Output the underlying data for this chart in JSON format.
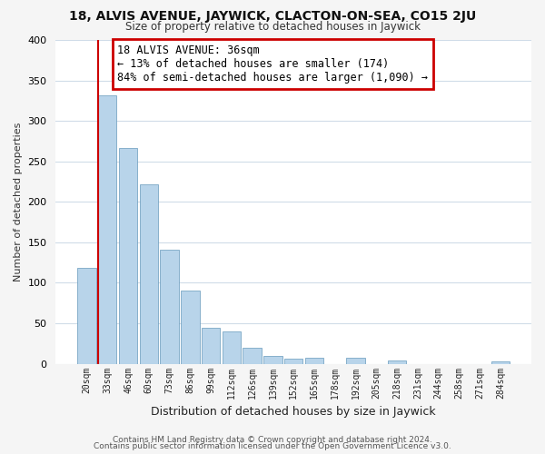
{
  "title": "18, ALVIS AVENUE, JAYWICK, CLACTON-ON-SEA, CO15 2JU",
  "subtitle": "Size of property relative to detached houses in Jaywick",
  "xlabel": "Distribution of detached houses by size in Jaywick",
  "ylabel": "Number of detached properties",
  "bar_labels": [
    "20sqm",
    "33sqm",
    "46sqm",
    "60sqm",
    "73sqm",
    "86sqm",
    "99sqm",
    "112sqm",
    "126sqm",
    "139sqm",
    "152sqm",
    "165sqm",
    "178sqm",
    "192sqm",
    "205sqm",
    "218sqm",
    "231sqm",
    "244sqm",
    "258sqm",
    "271sqm",
    "284sqm"
  ],
  "bar_values": [
    118,
    332,
    266,
    222,
    141,
    90,
    44,
    40,
    20,
    10,
    6,
    8,
    0,
    8,
    0,
    4,
    0,
    0,
    0,
    0,
    3
  ],
  "bar_color": "#b8d4ea",
  "bar_edge_color": "#6699bb",
  "highlight_bar_index": 1,
  "highlight_color": "#cc0000",
  "annotation_title": "18 ALVIS AVENUE: 36sqm",
  "annotation_line1": "← 13% of detached houses are smaller (174)",
  "annotation_line2": "84% of semi-detached houses are larger (1,090) →",
  "vline_x_left": 0.5,
  "ylim": [
    0,
    400
  ],
  "yticks": [
    0,
    50,
    100,
    150,
    200,
    250,
    300,
    350,
    400
  ],
  "footer1": "Contains HM Land Registry data © Crown copyright and database right 2024.",
  "footer2": "Contains public sector information licensed under the Open Government Licence v3.0.",
  "bg_color": "#f5f5f5",
  "plot_bg_color": "#ffffff",
  "grid_color": "#d0dce8"
}
